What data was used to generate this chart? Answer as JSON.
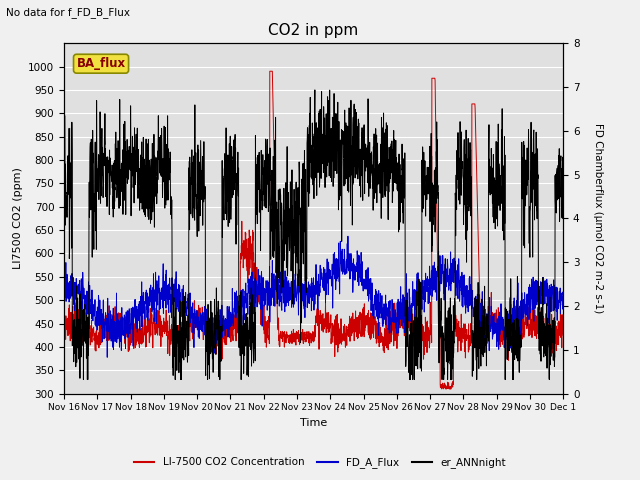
{
  "title": "CO2 in ppm",
  "top_left_text": "No data for f_FD_B_Flux",
  "box_label": "BA_flux",
  "ylabel_left": "LI7500 CO2 (ppm)",
  "ylabel_right": "FD Chamberflux (μmol CO2 m-2 s-1)",
  "xlabel": "Time",
  "ylim_left": [
    300,
    1050
  ],
  "ylim_right": [
    0.0,
    8.0
  ],
  "yticks_left": [
    300,
    350,
    400,
    450,
    500,
    550,
    600,
    650,
    700,
    750,
    800,
    850,
    900,
    950,
    1000
  ],
  "yticks_right": [
    0.0,
    1.0,
    2.0,
    3.0,
    4.0,
    5.0,
    6.0,
    7.0,
    8.0
  ],
  "background_color": "#f0f0f0",
  "plot_bg_color": "#e0e0e0",
  "grid_color": "#ffffff",
  "line_red": "#cc0000",
  "line_blue": "#0000cc",
  "line_black": "#000000",
  "legend_labels": [
    "LI-7500 CO2 Concentration",
    "FD_A_Flux",
    "er_ANNnight"
  ],
  "tick_labels": [
    "Nov 16",
    "Nov 17",
    "Nov 18",
    "Nov 19",
    "Nov 20",
    "Nov 21",
    "Nov 22",
    "Nov 23",
    "Nov 24",
    "Nov 25",
    "Nov 26",
    "Nov 27",
    "Nov 28",
    "Nov 29",
    "Nov 30",
    "Dec 1"
  ],
  "n_points": 2160,
  "seed": 7
}
